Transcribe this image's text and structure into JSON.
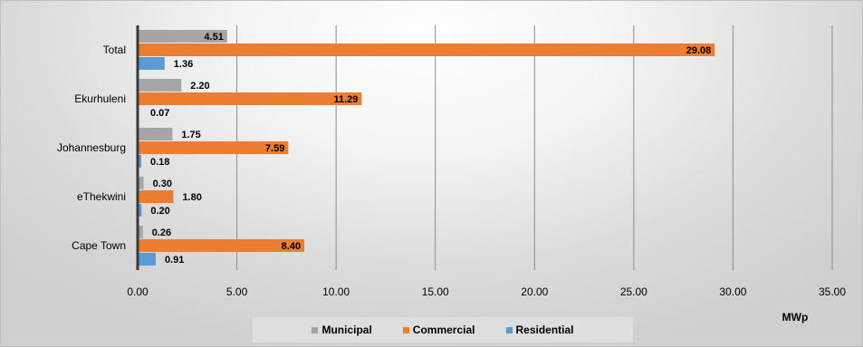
{
  "chart_data": {
    "type": "bar",
    "orientation": "horizontal",
    "categories": [
      "Total",
      "Ekurhuleni",
      "Johannesburg",
      "eThekwini",
      "Cape Town"
    ],
    "series": [
      {
        "name": "Municipal",
        "color": "#a6a6a6",
        "values": [
          4.51,
          2.2,
          1.75,
          0.3,
          0.26
        ],
        "labels": [
          "4.51",
          "2.20",
          "1.75",
          "0.30",
          "0.26"
        ]
      },
      {
        "name": "Commercial",
        "color": "#ed7d31",
        "values": [
          29.08,
          11.29,
          7.59,
          1.8,
          8.4
        ],
        "labels": [
          "29.08",
          "11.29",
          "7.59",
          "1.80",
          "8.40"
        ]
      },
      {
        "name": "Residential",
        "color": "#5b9bd5",
        "values": [
          1.36,
          0.07,
          0.18,
          0.2,
          0.91
        ],
        "labels": [
          "1.36",
          "0.07",
          "0.18",
          "0.20",
          "0.91"
        ]
      }
    ],
    "xlim": [
      0,
      35
    ],
    "xticks": [
      "0.00",
      "5.00",
      "10.00",
      "15.00",
      "20.00",
      "25.00",
      "30.00",
      "35.00"
    ],
    "xunit": "MWp",
    "gridlines": true,
    "legend_position": "bottom"
  }
}
